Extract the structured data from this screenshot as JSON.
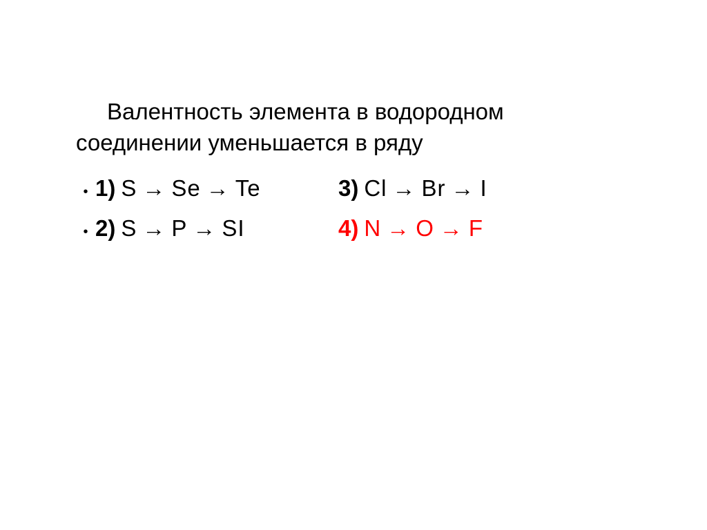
{
  "slide": {
    "background_color": "#ffffff",
    "text_color": "#000000",
    "correct_color": "#ff0000",
    "font_size": 33,
    "question": "Валентность элемента в водородном соединении уменьшается в ряду",
    "arrow": "→",
    "options": [
      {
        "number": "1)",
        "elements": [
          "S",
          "Se",
          "Te"
        ],
        "is_correct": false,
        "position": "left",
        "row": 1
      },
      {
        "number": "3)",
        "elements": [
          "Cl",
          "Br",
          "I"
        ],
        "is_correct": false,
        "position": "right",
        "row": 1
      },
      {
        "number": "2)",
        "elements": [
          "S",
          "P",
          "SI"
        ],
        "is_correct": false,
        "position": "left",
        "row": 2
      },
      {
        "number": "4)",
        "elements": [
          "N",
          "O",
          "F"
        ],
        "is_correct": true,
        "position": "right",
        "row": 2
      }
    ]
  }
}
